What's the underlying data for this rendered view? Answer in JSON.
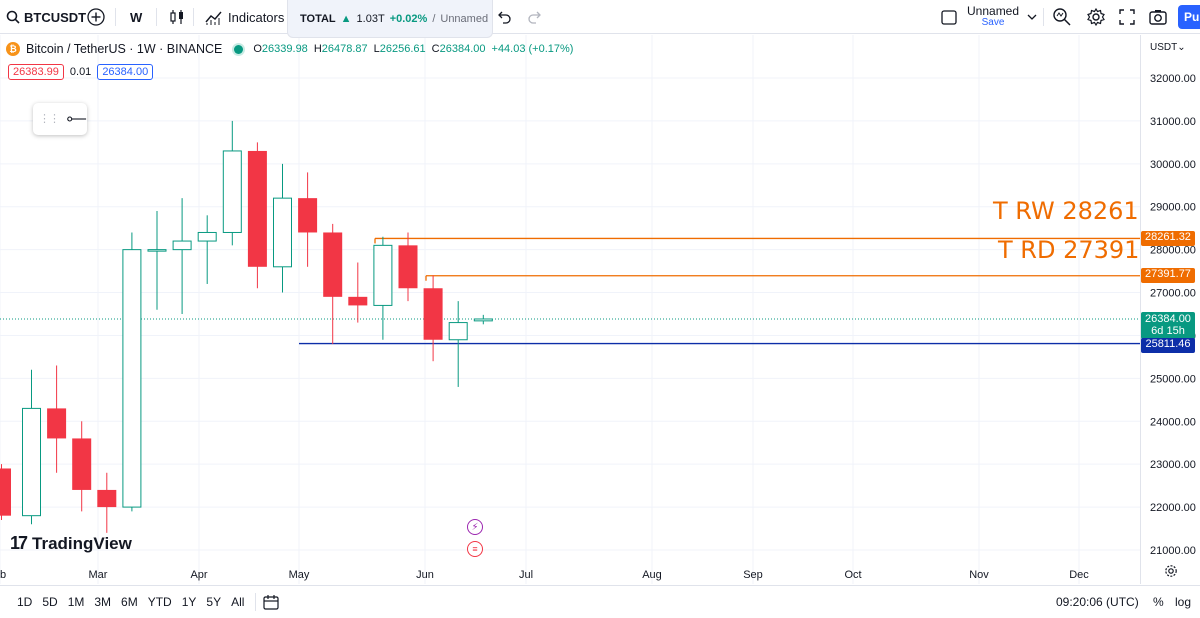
{
  "toolbar": {
    "symbol": "BTCUSDT",
    "interval": "W",
    "indicators_label": "Indicators",
    "total": {
      "label": "TOTAL",
      "value": "1.03T",
      "change": "+0.02%",
      "separator": "/",
      "layout": "Unnamed"
    },
    "layout_name": "Unnamed",
    "save_label": "Save",
    "publish_label": "Pu"
  },
  "legend": {
    "coin_glyph": "₿",
    "title": "Bitcoin / TetherUS · 1W · BINANCE",
    "open_key": "O",
    "open": "26339.98",
    "high_key": "H",
    "high": "26478.87",
    "low_key": "L",
    "low": "26256.61",
    "close_key": "C",
    "close": "26384.00",
    "change": "+44.03 (+0.17%)"
  },
  "bidask": {
    "sell": "26383.99",
    "spread": "0.01",
    "buy": "26384.00"
  },
  "currency": "USDT",
  "annotations": {
    "line1": "T RW 28261",
    "line2": "T RD 27391"
  },
  "tags": {
    "rw": "28261.32",
    "rd": "27391.77",
    "last_price": "26384.00",
    "countdown": "6d 15h",
    "support": "25811.46"
  },
  "colors": {
    "up": "#089981",
    "down": "#f23645",
    "orange_line": "#ef6c00",
    "blue_line": "#0d2ea8"
  },
  "branding": {
    "logo_text": "TradingView",
    "logo_glyph": "17"
  },
  "bottom": {
    "ranges": [
      "1D",
      "5D",
      "1M",
      "3M",
      "6M",
      "YTD",
      "1Y",
      "5Y",
      "All"
    ],
    "clock": "09:20:06 (UTC)",
    "percent": "%",
    "log": "log"
  },
  "chart_data": {
    "type": "candlestick",
    "title": "Bitcoin / TetherUS · 1W · BINANCE",
    "y_ticks": [
      21000,
      22000,
      23000,
      24000,
      25000,
      26000,
      27000,
      28000,
      29000,
      30000,
      31000,
      32000
    ],
    "y_tick_labels": [
      "21000.00",
      "22000.00",
      "23000.00",
      "24000.00",
      "25000.00",
      "26000.00",
      "27000.00",
      "28000.00",
      "29000.00",
      "30000.00",
      "31000.00",
      "32000.00"
    ],
    "x_labels": [
      "b",
      "Mar",
      "Apr",
      "May",
      "Jun",
      "Jul",
      "Aug",
      "Sep",
      "Oct",
      "Nov",
      "Dec"
    ],
    "horizontal_lines": [
      {
        "price": 28261.32,
        "color": "orange"
      },
      {
        "price": 27391.77,
        "color": "orange"
      },
      {
        "price": 25811.46,
        "color": "blue"
      }
    ],
    "candles": [
      {
        "o": 22900,
        "h": 23000,
        "l": 21700,
        "c": 21800
      },
      {
        "o": 21800,
        "h": 25200,
        "l": 21600,
        "c": 24300
      },
      {
        "o": 24300,
        "h": 25300,
        "l": 22800,
        "c": 23600
      },
      {
        "o": 23600,
        "h": 24000,
        "l": 21900,
        "c": 22400
      },
      {
        "o": 22400,
        "h": 22800,
        "l": 21400,
        "c": 22000
      },
      {
        "o": 22000,
        "h": 28400,
        "l": 21900,
        "c": 28000
      },
      {
        "o": 28000,
        "h": 28900,
        "l": 26600,
        "c": 28000
      },
      {
        "o": 28000,
        "h": 29200,
        "l": 26500,
        "c": 28200
      },
      {
        "o": 28200,
        "h": 28800,
        "l": 27200,
        "c": 28400
      },
      {
        "o": 28400,
        "h": 31000,
        "l": 28100,
        "c": 30300
      },
      {
        "o": 30300,
        "h": 30500,
        "l": 27100,
        "c": 27600
      },
      {
        "o": 27600,
        "h": 30000,
        "l": 27000,
        "c": 29200
      },
      {
        "o": 29200,
        "h": 29800,
        "l": 27600,
        "c": 28400
      },
      {
        "o": 28400,
        "h": 28600,
        "l": 25800,
        "c": 26900
      },
      {
        "o": 26900,
        "h": 27700,
        "l": 26300,
        "c": 26700
      },
      {
        "o": 26700,
        "h": 28300,
        "l": 25900,
        "c": 28100
      },
      {
        "o": 28100,
        "h": 28400,
        "l": 26800,
        "c": 27100
      },
      {
        "o": 27100,
        "h": 27400,
        "l": 25400,
        "c": 25900
      },
      {
        "o": 25900,
        "h": 26800,
        "l": 24800,
        "c": 26300
      },
      {
        "o": 26340,
        "h": 26480,
        "l": 26260,
        "c": 26384
      }
    ]
  }
}
